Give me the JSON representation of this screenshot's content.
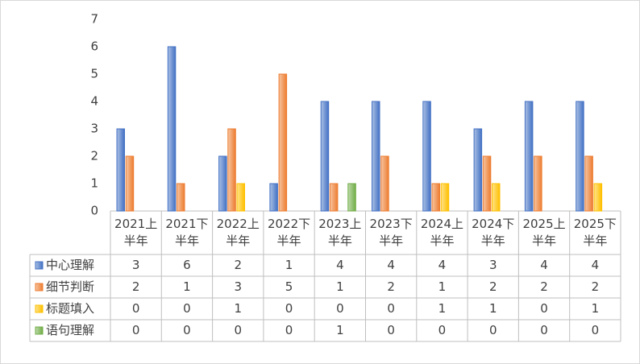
{
  "chart_data": {
    "type": "bar",
    "categories": [
      "2021上半年",
      "2021下半年",
      "2022上半年",
      "2022下半年",
      "2023上半年",
      "2023下半年",
      "2024上半年",
      "2024下半年",
      "2025上半年",
      "2025下半年"
    ],
    "series": [
      {
        "name": "中心理解",
        "color": "#4472c4",
        "values": [
          3,
          6,
          2,
          1,
          4,
          4,
          4,
          3,
          4,
          4
        ]
      },
      {
        "name": "细节判断",
        "color": "#ed7d31",
        "values": [
          2,
          1,
          3,
          5,
          1,
          2,
          1,
          2,
          2,
          2
        ]
      },
      {
        "name": "标题填入",
        "color": "#ffc000",
        "values": [
          0,
          0,
          1,
          0,
          0,
          0,
          1,
          1,
          0,
          1
        ]
      },
      {
        "name": "语句理解",
        "color": "#70ad47",
        "values": [
          0,
          0,
          0,
          0,
          1,
          0,
          0,
          0,
          0,
          0
        ]
      }
    ],
    "ylim": [
      0,
      7
    ],
    "yticks": [
      0,
      1,
      2,
      3,
      4,
      5,
      6,
      7
    ],
    "grid": false
  }
}
